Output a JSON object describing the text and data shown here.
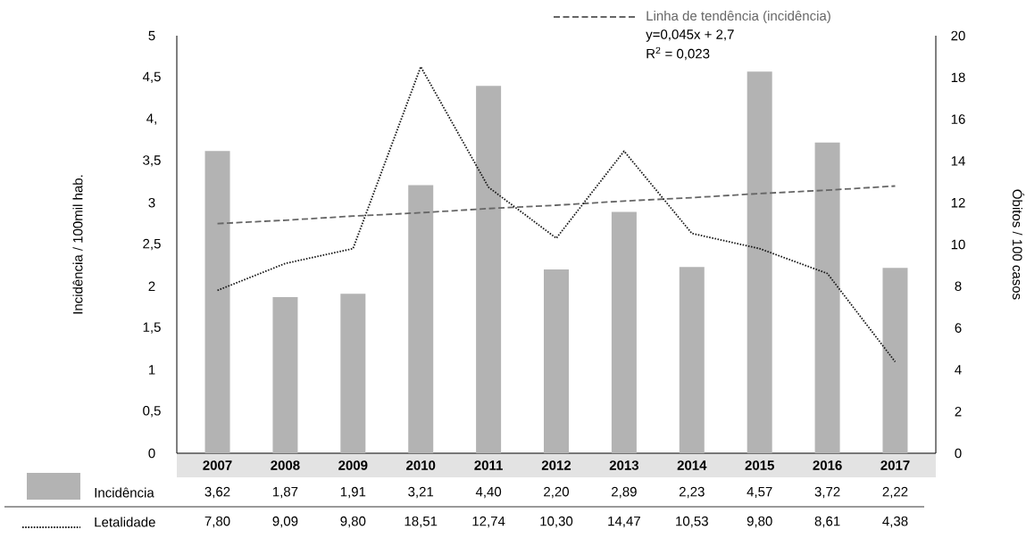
{
  "chart_data": {
    "type": "bar",
    "categories": [
      "2007",
      "2008",
      "2009",
      "2010",
      "2011",
      "2012",
      "2013",
      "2014",
      "2015",
      "2016",
      "2017"
    ],
    "series": [
      {
        "name": "Incidência",
        "color": "#b3b3b3",
        "values": [
          3.62,
          1.87,
          1.91,
          3.21,
          4.4,
          2.2,
          2.89,
          2.23,
          4.57,
          3.72,
          2.22
        ],
        "value_labels": [
          "3,62",
          "1,87",
          "1,91",
          "3,21",
          "4,40",
          "2,20",
          "2,89",
          "2,23",
          "4,57",
          "3,72",
          "2,22"
        ]
      },
      {
        "name": "Letalidade",
        "type": "line",
        "axis": "y2",
        "color": "#1a1a1a",
        "line_style": "dotted",
        "marker": "none",
        "values": [
          7.8,
          9.09,
          9.8,
          18.51,
          12.74,
          10.3,
          14.47,
          10.53,
          9.8,
          8.61,
          4.38
        ],
        "value_labels": [
          "7,80",
          "9,09",
          "9,80",
          "18,51",
          "12,74",
          "10,30",
          "14,47",
          "10,53",
          "9,80",
          "8,61",
          "4,38"
        ]
      },
      {
        "name": "Linha de tendência (incidência)",
        "type": "line",
        "color": "#666666",
        "line_style": "dashed",
        "marker": "none",
        "values": [
          2.75,
          2.79,
          2.84,
          2.88,
          2.93,
          2.97,
          3.02,
          3.06,
          3.11,
          3.15,
          3.2
        ]
      }
    ],
    "ylabel": "Incidência / 100mil hab.",
    "y2label": "Óbitos / 100 casos",
    "ylim": [
      0,
      5
    ],
    "yticks": [
      {
        "value": 0,
        "label": "0"
      },
      {
        "value": 0.5,
        "label": "0,5"
      },
      {
        "value": 1,
        "label": "1"
      },
      {
        "value": 1.5,
        "label": "1,5"
      },
      {
        "value": 2,
        "label": "2"
      },
      {
        "value": 2.5,
        "label": "2,5"
      },
      {
        "value": 3,
        "label": "3"
      },
      {
        "value": 3.5,
        "label": "3,5"
      },
      {
        "value": 4,
        "label": "4,"
      },
      {
        "value": 4.5,
        "label": "4,5"
      },
      {
        "value": 5,
        "label": "5"
      }
    ],
    "y2lim": [
      0,
      20
    ],
    "y2ticks": [
      0,
      2,
      4,
      6,
      8,
      10,
      12,
      14,
      16,
      18,
      20
    ],
    "annotations": [
      "y=0,045x + 2,7",
      "R$^{2}$ = 0,023"
    ],
    "legend": "bottom left"
  }
}
